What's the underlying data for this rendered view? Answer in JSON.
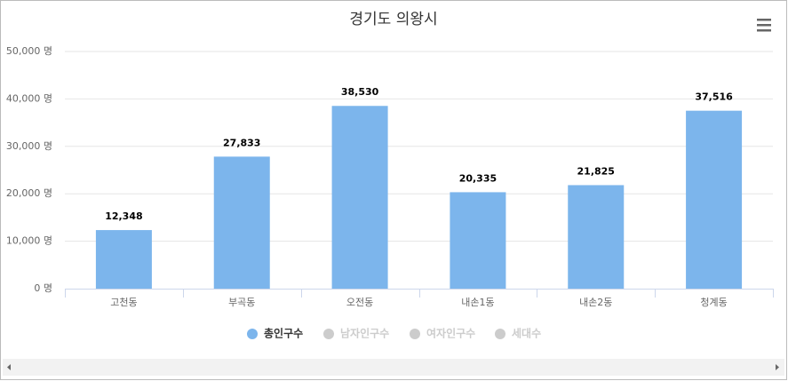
{
  "chart_data": {
    "type": "bar",
    "title": "경기도 의왕시",
    "categories": [
      "고천동",
      "부곡동",
      "오전동",
      "내손1동",
      "내손2동",
      "청계동"
    ],
    "series": [
      {
        "name": "총인구수",
        "color": "#7cb5ec",
        "values": [
          12348,
          27833,
          38530,
          20335,
          21825,
          37516
        ],
        "value_labels": [
          "12,348",
          "27,833",
          "38,530",
          "20,335",
          "21,825",
          "37,516"
        ]
      },
      {
        "name": "남자인구수",
        "color": "#cccccc",
        "visible": false
      },
      {
        "name": "여자인구수",
        "color": "#cccccc",
        "visible": false
      },
      {
        "name": "세대수",
        "color": "#cccccc",
        "visible": false
      }
    ],
    "ylim": [
      0,
      50000
    ],
    "yticks": [
      {
        "value": 0,
        "label": "0 명"
      },
      {
        "value": 10000,
        "label": "10,000 명"
      },
      {
        "value": 20000,
        "label": "20,000 명"
      },
      {
        "value": 30000,
        "label": "30,000 명"
      },
      {
        "value": 40000,
        "label": "40,000 명"
      },
      {
        "value": 50000,
        "label": "50,000 명"
      }
    ],
    "grid": true
  }
}
